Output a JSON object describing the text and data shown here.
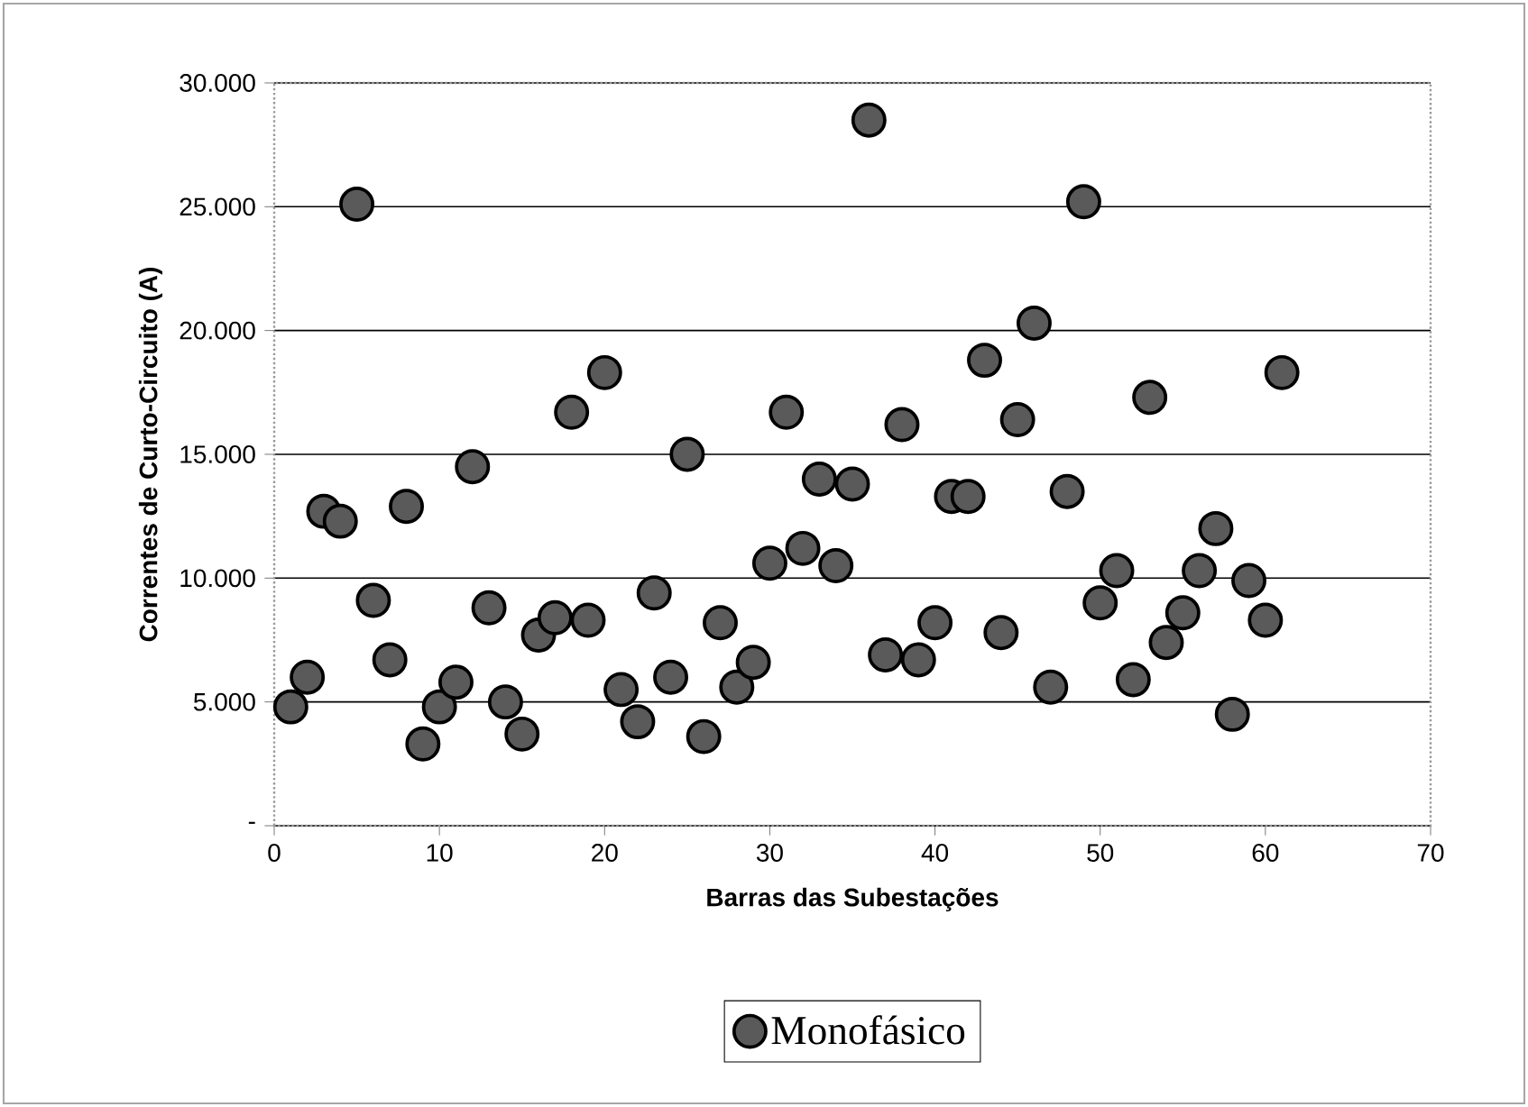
{
  "chart_data": {
    "type": "scatter",
    "xlabel": "Barras das Subestações",
    "ylabel": "Correntes de Curto-Circuito (A)",
    "xlim": [
      0,
      70
    ],
    "xticks": [
      0,
      10,
      20,
      30,
      40,
      50,
      60,
      70
    ],
    "ylim": [
      0,
      30000
    ],
    "yticks": [
      {
        "value": 0,
        "label": "-"
      },
      {
        "value": 5000,
        "label": "5.000"
      },
      {
        "value": 10000,
        "label": "10.000"
      },
      {
        "value": 15000,
        "label": "15.000"
      },
      {
        "value": 20000,
        "label": "20.000"
      },
      {
        "value": 25000,
        "label": "25.000"
      },
      {
        "value": 30000,
        "label": "30.000"
      }
    ],
    "grid": "y",
    "legend": "bottom",
    "marker": "circle",
    "x": [
      1,
      2,
      3,
      4,
      5,
      6,
      7,
      8,
      9,
      10,
      11,
      12,
      13,
      14,
      15,
      16,
      17,
      18,
      19,
      20,
      21,
      22,
      23,
      24,
      25,
      26,
      27,
      28,
      29,
      30,
      31,
      32,
      33,
      34,
      35,
      36,
      37,
      38,
      39,
      40,
      41,
      42,
      43,
      44,
      45,
      46,
      47,
      48,
      49,
      50,
      51,
      52,
      53,
      54,
      55,
      56,
      57,
      58,
      59,
      60,
      61
    ],
    "series": [
      {
        "name": "Monofásico",
        "color": "#5a5a5a",
        "values": [
          4800,
          6000,
          12700,
          12300,
          25100,
          9100,
          6700,
          12900,
          3300,
          4800,
          5800,
          14500,
          8800,
          5000,
          3700,
          7700,
          8400,
          16700,
          8300,
          18300,
          5500,
          4200,
          9400,
          6000,
          15000,
          3600,
          8200,
          5600,
          6600,
          10600,
          16700,
          11200,
          14000,
          10500,
          13800,
          28500,
          6900,
          16200,
          6700,
          8200,
          13300,
          13300,
          18800,
          7800,
          16400,
          20300,
          5600,
          13500,
          25200,
          9000,
          10300,
          5900,
          17300,
          7400,
          8600,
          10300,
          12000,
          4500,
          9900,
          8300,
          18300
        ]
      }
    ]
  }
}
